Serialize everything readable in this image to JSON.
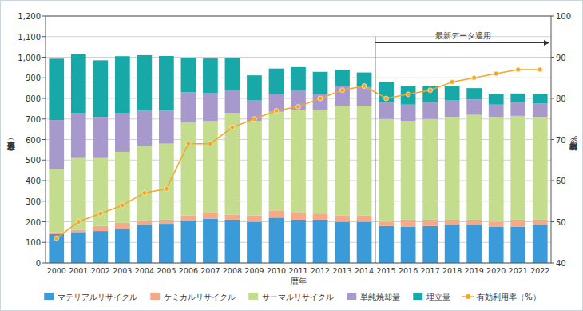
{
  "chart_data": {
    "type": "bar",
    "stacked": true,
    "grid": true,
    "legend": "bottom",
    "x_label": "暦年",
    "y_label": "処理処分量（万ｔ）",
    "y2_label": "有効利用率（%）",
    "categories": [
      "2000",
      "2001",
      "2002",
      "2003",
      "2004",
      "2005",
      "2006",
      "2007",
      "2008",
      "2009",
      "2010",
      "2011",
      "2012",
      "2013",
      "2014",
      "2015",
      "2016",
      "2017",
      "2018",
      "2019",
      "2020",
      "2021",
      "2022"
    ],
    "ylim": [
      0,
      1200
    ],
    "yticks": [
      0,
      100,
      200,
      300,
      400,
      500,
      600,
      700,
      800,
      900,
      {
        "value": 1000,
        "label": "1,000"
      },
      {
        "value": 1100,
        "label": "1,100"
      },
      {
        "value": 1200,
        "label": "1,200"
      }
    ],
    "y2lim": [
      40,
      100
    ],
    "y2ticks": [
      40,
      50,
      60,
      70,
      80,
      90,
      100
    ],
    "annotations": [
      {
        "text": "最新データ適用",
        "from": "2015"
      }
    ],
    "series": [
      {
        "name": "マテリアルリサイクル",
        "type": "bar",
        "color": "#3a9bd8",
        "values": [
          140,
          150,
          155,
          165,
          185,
          190,
          205,
          215,
          210,
          200,
          220,
          210,
          210,
          200,
          200,
          180,
          175,
          180,
          185,
          185,
          175,
          175,
          185
        ]
      },
      {
        "name": "ケミカルリサイクル",
        "type": "bar",
        "color": "#f5a98a",
        "values": [
          10,
          10,
          25,
          30,
          20,
          20,
          25,
          30,
          25,
          30,
          35,
          35,
          30,
          30,
          30,
          20,
          35,
          30,
          25,
          25,
          25,
          35,
          25
        ]
      },
      {
        "name": "サーマルリサイクル",
        "type": "bar",
        "color": "#c3dc8e",
        "values": [
          305,
          350,
          330,
          345,
          365,
          370,
          455,
          445,
          495,
          460,
          480,
          500,
          505,
          535,
          535,
          500,
          480,
          490,
          500,
          510,
          510,
          505,
          500
        ]
      },
      {
        "name": "単純焼却量",
        "type": "bar",
        "color": "#a899cc",
        "values": [
          240,
          220,
          200,
          190,
          170,
          160,
          145,
          135,
          110,
          100,
          85,
          95,
          75,
          95,
          90,
          80,
          80,
          80,
          80,
          75,
          60,
          65,
          65
        ]
      },
      {
        "name": "埋立量",
        "type": "bar",
        "color": "#18a8a8",
        "values": [
          298,
          286,
          275,
          275,
          270,
          266,
          168,
          169,
          157,
          122,
          125,
          112,
          109,
          80,
          71,
          100,
          90,
          80,
          70,
          55,
          52,
          44,
          45
        ]
      },
      {
        "name": "有効利用率（%）",
        "type": "line",
        "axis": "y2",
        "color": "#f5a623",
        "marker": "circle",
        "values": [
          46,
          50,
          52,
          54,
          57,
          58,
          69,
          69,
          73,
          75,
          77,
          78,
          80,
          82,
          83,
          80,
          81,
          82,
          84,
          85,
          86,
          87,
          87
        ]
      }
    ]
  }
}
